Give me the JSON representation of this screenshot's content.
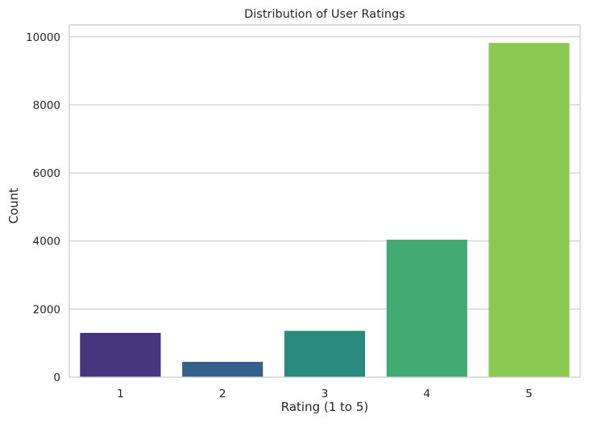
{
  "chart_data": {
    "type": "bar",
    "title": "Distribution of User Ratings",
    "xlabel": "Rating (1 to 5)",
    "ylabel": "Count",
    "categories": [
      "1",
      "2",
      "3",
      "4",
      "5"
    ],
    "values": [
      1300,
      450,
      1360,
      4040,
      9820
    ],
    "ylim": [
      0,
      10350
    ],
    "yticks": [
      0,
      2000,
      4000,
      6000,
      8000,
      10000
    ],
    "ytick_labels": [
      "0",
      "2000",
      "4000",
      "6000",
      "8000",
      "10000"
    ],
    "grid": "horizontal",
    "colors": [
      "#463480",
      "#35608d",
      "#2a8a7d",
      "#44aa74",
      "#8dc852"
    ]
  }
}
